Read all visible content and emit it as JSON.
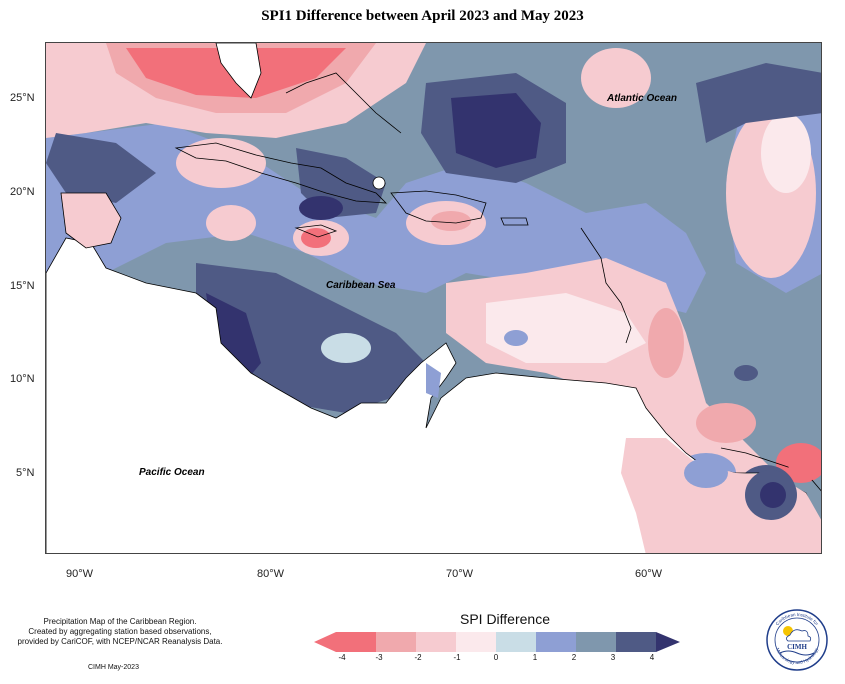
{
  "title": "SPI1 Difference between April 2023 and May 2023",
  "map": {
    "labels": {
      "atlantic": "Atlantic Ocean",
      "caribbean": "Caribbean Sea",
      "pacific": "Pacific Ocean"
    },
    "lat_ticks": [
      "25°N",
      "20°N",
      "15°N",
      "10°N",
      "5°N"
    ],
    "lon_ticks": [
      "90°W",
      "80°W",
      "70°W",
      "60°W"
    ]
  },
  "legend": {
    "title": "SPI Difference",
    "ticks": [
      "-4",
      "-3",
      "-2",
      "-1",
      "0",
      "1",
      "2",
      "3",
      "4"
    ],
    "colors": [
      "#f2707a",
      "#f0a9ad",
      "#f6cbd0",
      "#fbe9ec",
      "#c9dde6",
      "#8e9fd4",
      "#7f97ad",
      "#4f5a85",
      "#33336e"
    ]
  },
  "notes": {
    "line1": "Precipitation Map of the Caribbean Region.",
    "line2": "Created by aggregating station based observations,",
    "line3": "provided by CariCOF, with NCEP/NCAR Reanalysis Data.",
    "date": "CIMH May-2023"
  },
  "logo": {
    "top_text": "Caribbean Institute for",
    "bottom_text": "Meteorology and Hydrology",
    "center_text": "CIMH"
  }
}
